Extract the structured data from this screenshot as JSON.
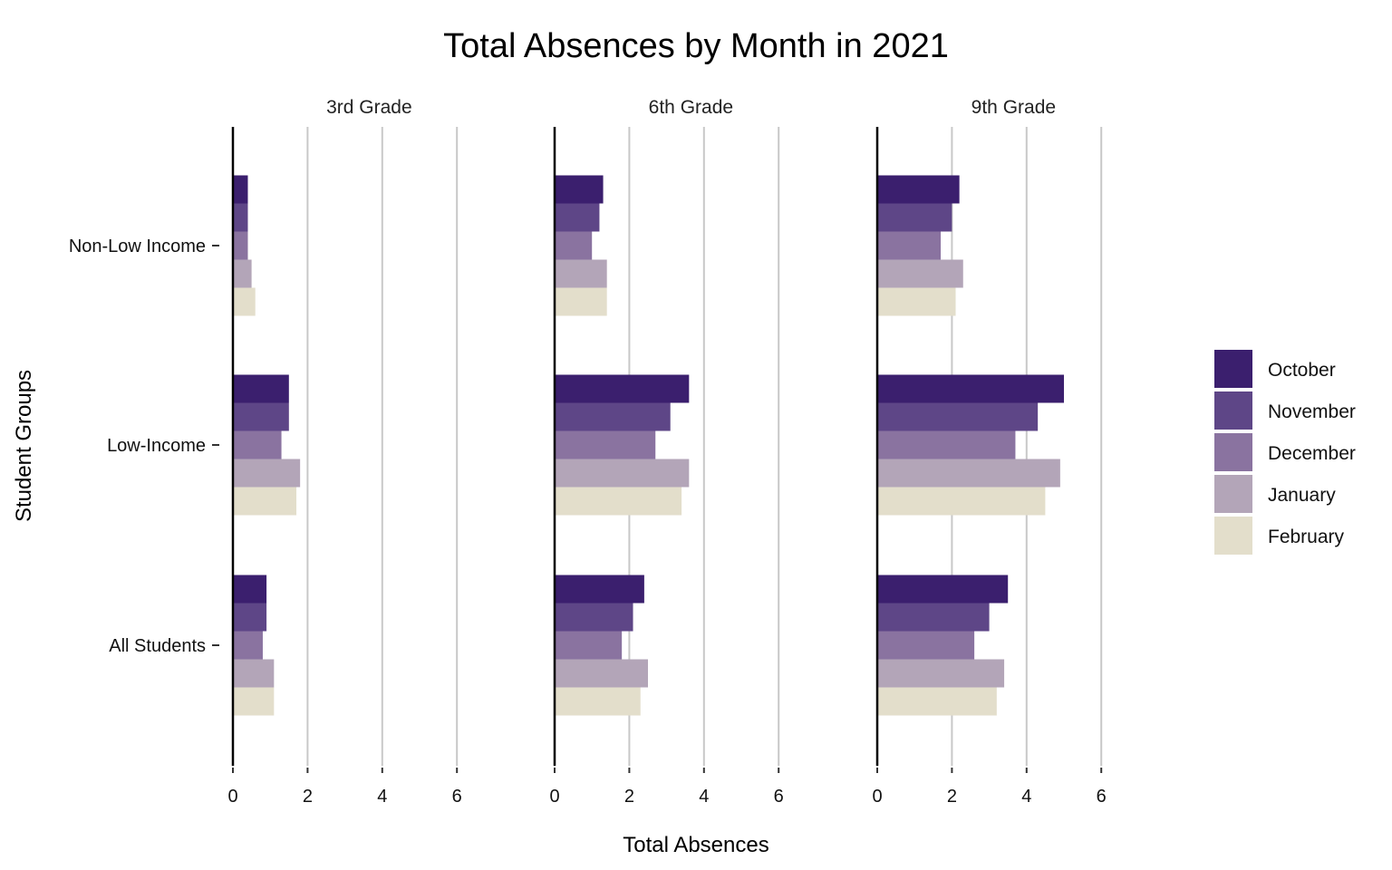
{
  "chart_data": {
    "type": "bar",
    "orientation": "horizontal",
    "title": "Total Absences by Month in 2021",
    "xlabel": "Total Absences",
    "ylabel": "Student Groups",
    "xlim": [
      0,
      7.3
    ],
    "x_ticks": [
      0,
      2,
      4,
      6
    ],
    "grid": "vertical-major",
    "legend_position": "right",
    "categories": [
      "Non-Low Income",
      "Low-Income",
      "All Students"
    ],
    "series_names": [
      "October",
      "November",
      "December",
      "January",
      "February"
    ],
    "series_colors": [
      "#3b1f6e",
      "#5e4687",
      "#8a73a0",
      "#b3a5b8",
      "#e3decb"
    ],
    "facets": [
      {
        "label": "3rd Grade",
        "values": {
          "Non-Low Income": [
            0.4,
            0.4,
            0.4,
            0.5,
            0.6
          ],
          "Low-Income": [
            1.5,
            1.5,
            1.3,
            1.8,
            1.7
          ],
          "All Students": [
            0.9,
            0.9,
            0.8,
            1.1,
            1.1
          ]
        }
      },
      {
        "label": "6th Grade",
        "values": {
          "Non-Low Income": [
            1.3,
            1.2,
            1.0,
            1.4,
            1.4
          ],
          "Low-Income": [
            3.6,
            3.1,
            2.7,
            3.6,
            3.4
          ],
          "All Students": [
            2.4,
            2.1,
            1.8,
            2.5,
            2.3
          ]
        }
      },
      {
        "label": "9th Grade",
        "values": {
          "Non-Low Income": [
            2.2,
            2.0,
            1.7,
            2.3,
            2.1
          ],
          "Low-Income": [
            5.0,
            4.3,
            3.7,
            4.9,
            4.5
          ],
          "All Students": [
            3.5,
            3.0,
            2.6,
            3.4,
            3.2
          ]
        }
      }
    ]
  }
}
